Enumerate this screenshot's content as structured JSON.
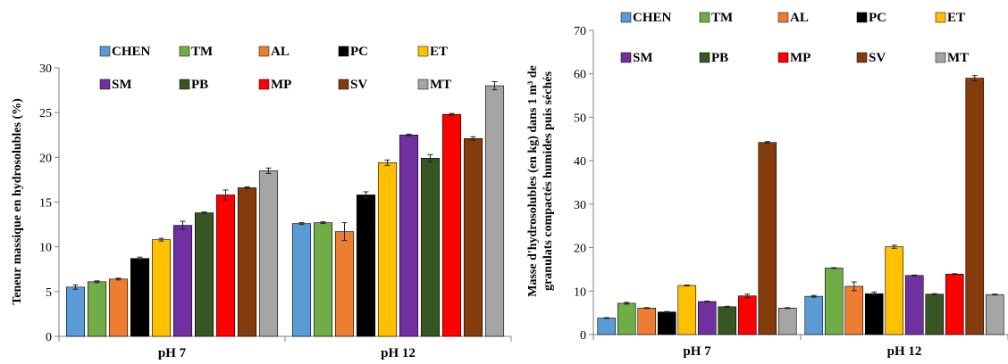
{
  "colors": {
    "CHEN": "#5B9BD5",
    "TM": "#70AD47",
    "AL": "#ED7D31",
    "PC": "#000000",
    "ET": "#FFC000",
    "SM": "#7030A0",
    "PB": "#375623",
    "MP": "#FF0000",
    "SV": "#843C0C",
    "MT": "#A5A5A5"
  },
  "chart_data": [
    {
      "type": "bar",
      "categories": [
        "pH 7",
        "pH 12"
      ],
      "ylabel": "Teneur massique en hydrosolubles (%)",
      "ylim": [
        0,
        30
      ],
      "yticks": [
        "0",
        "5",
        "10",
        "15",
        "20",
        "25",
        "30"
      ],
      "grid": false,
      "legend_position": "top",
      "series": [
        {
          "name": "CHEN",
          "values": [
            5.5,
            12.6
          ]
        },
        {
          "name": "TM",
          "values": [
            6.1,
            12.7
          ]
        },
        {
          "name": "AL",
          "values": [
            6.4,
            11.7
          ]
        },
        {
          "name": "PC",
          "values": [
            8.7,
            15.8
          ]
        },
        {
          "name": "ET",
          "values": [
            10.8,
            19.4
          ]
        },
        {
          "name": "SM",
          "values": [
            12.4,
            22.5
          ]
        },
        {
          "name": "PB",
          "values": [
            13.8,
            19.9
          ]
        },
        {
          "name": "MP",
          "values": [
            15.8,
            24.8
          ]
        },
        {
          "name": "SV",
          "values": [
            16.6,
            22.1
          ]
        },
        {
          "name": "MT",
          "values": [
            18.5,
            28.0
          ]
        }
      ],
      "errors": [
        [
          0.25,
          0.1
        ],
        [
          0.1,
          0.1
        ],
        [
          0.1,
          1.0
        ],
        [
          0.15,
          0.35
        ],
        [
          0.15,
          0.3
        ],
        [
          0.45,
          0.1
        ],
        [
          0.1,
          0.4
        ],
        [
          0.55,
          0.1
        ],
        [
          0.1,
          0.2
        ],
        [
          0.3,
          0.45
        ]
      ]
    },
    {
      "type": "bar",
      "categories": [
        "pH 7",
        "pH 12"
      ],
      "ylabel_line1": "Masse d'hydrosolubles (en kg) dans 1 m³ de",
      "ylabel_line2": "granulats compactés humides puis séchés",
      "ylim": [
        0,
        70
      ],
      "yticks": [
        "0",
        "10",
        "20",
        "30",
        "40",
        "50",
        "60",
        "70"
      ],
      "grid": false,
      "legend_position": "top",
      "series": [
        {
          "name": "CHEN",
          "values": [
            3.8,
            8.8
          ]
        },
        {
          "name": "TM",
          "values": [
            7.2,
            15.3
          ]
        },
        {
          "name": "AL",
          "values": [
            6.1,
            11.1
          ]
        },
        {
          "name": "PC",
          "values": [
            5.2,
            9.4
          ]
        },
        {
          "name": "ET",
          "values": [
            11.3,
            20.2
          ]
        },
        {
          "name": "SM",
          "values": [
            7.6,
            13.6
          ]
        },
        {
          "name": "PB",
          "values": [
            6.4,
            9.3
          ]
        },
        {
          "name": "MP",
          "values": [
            8.9,
            13.9
          ]
        },
        {
          "name": "SV",
          "values": [
            44.2,
            59.0
          ]
        },
        {
          "name": "MT",
          "values": [
            6.1,
            9.2
          ]
        }
      ],
      "errors": [
        [
          0.1,
          0.2
        ],
        [
          0.2,
          0.1
        ],
        [
          0.1,
          1.0
        ],
        [
          0.1,
          0.4
        ],
        [
          0.1,
          0.35
        ],
        [
          0.1,
          0.1
        ],
        [
          0.1,
          0.1
        ],
        [
          0.4,
          0.1
        ],
        [
          0.2,
          0.6
        ],
        [
          0.1,
          0.1
        ]
      ]
    }
  ]
}
